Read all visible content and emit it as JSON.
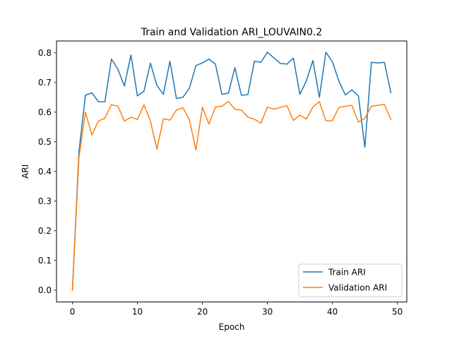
{
  "chart_data": {
    "type": "line",
    "title": "Train and Validation ARI_LOUVAIN0.2",
    "xlabel": "Epoch",
    "ylabel": "ARI",
    "xlim": [
      -2.45,
      51.45
    ],
    "ylim": [
      -0.04,
      0.84
    ],
    "xticks": [
      0,
      10,
      20,
      30,
      40,
      50
    ],
    "xtick_labels": [
      "0",
      "10",
      "20",
      "30",
      "40",
      "50"
    ],
    "yticks": [
      0.0,
      0.1,
      0.2,
      0.3,
      0.4,
      0.5,
      0.6,
      0.7,
      0.8
    ],
    "ytick_labels": [
      "0.0",
      "0.1",
      "0.2",
      "0.3",
      "0.4",
      "0.5",
      "0.6",
      "0.7",
      "0.8"
    ],
    "grid": false,
    "legend_position": "bottom-right",
    "x": [
      0,
      1,
      2,
      3,
      4,
      5,
      6,
      7,
      8,
      9,
      10,
      11,
      12,
      13,
      14,
      15,
      16,
      17,
      18,
      19,
      20,
      21,
      22,
      23,
      24,
      25,
      26,
      27,
      28,
      29,
      30,
      31,
      32,
      33,
      34,
      35,
      36,
      37,
      38,
      39,
      40,
      41,
      42,
      43,
      44,
      45,
      46,
      47,
      48,
      49
    ],
    "series": [
      {
        "name": "Train ARI",
        "color": "#1f77b4",
        "values": [
          0.0,
          0.465,
          0.657,
          0.665,
          0.635,
          0.635,
          0.779,
          0.745,
          0.688,
          0.793,
          0.655,
          0.67,
          0.765,
          0.69,
          0.66,
          0.772,
          0.646,
          0.65,
          0.681,
          0.757,
          0.766,
          0.779,
          0.762,
          0.66,
          0.664,
          0.75,
          0.657,
          0.659,
          0.772,
          0.768,
          0.802,
          0.783,
          0.764,
          0.762,
          0.782,
          0.66,
          0.706,
          0.774,
          0.65,
          0.802,
          0.77,
          0.705,
          0.658,
          0.675,
          0.655,
          0.482,
          0.768,
          0.766,
          0.768,
          0.666
        ]
      },
      {
        "name": "Validation ARI",
        "color": "#ff7f0e",
        "values": [
          0.0,
          0.447,
          0.6,
          0.523,
          0.57,
          0.58,
          0.625,
          0.62,
          0.57,
          0.583,
          0.575,
          0.625,
          0.57,
          0.475,
          0.578,
          0.573,
          0.607,
          0.615,
          0.575,
          0.472,
          0.617,
          0.56,
          0.617,
          0.62,
          0.636,
          0.61,
          0.607,
          0.583,
          0.576,
          0.563,
          0.617,
          0.61,
          0.616,
          0.622,
          0.572,
          0.59,
          0.577,
          0.617,
          0.636,
          0.571,
          0.571,
          0.616,
          0.62,
          0.623,
          0.567,
          0.579,
          0.62,
          0.623,
          0.626,
          0.576
        ]
      }
    ]
  }
}
